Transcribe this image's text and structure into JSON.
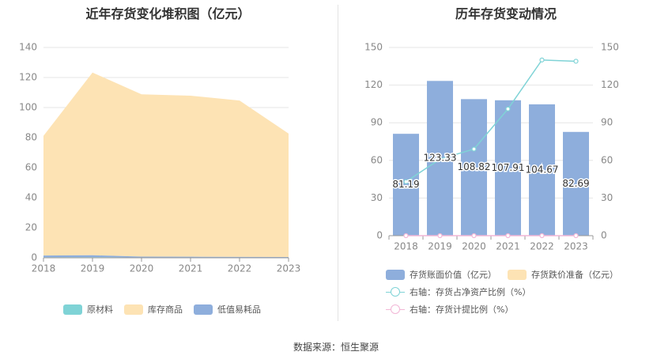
{
  "source": "数据来源：恒生聚源",
  "chart_data": [
    {
      "type": "area",
      "title": "近年存货变化堆积图（亿元）",
      "x": [
        "2018",
        "2019",
        "2020",
        "2021",
        "2022",
        "2023"
      ],
      "ylim": [
        0,
        140
      ],
      "yticks": [
        0,
        20,
        40,
        60,
        80,
        100,
        120,
        140
      ],
      "stacked": true,
      "grid": true,
      "legend_position": "bottom",
      "series": [
        {
          "name": "原材料",
          "color": "#7fd3d6",
          "values": [
            0.3,
            0.4,
            0.2,
            0.2,
            0.2,
            0.2
          ]
        },
        {
          "name": "低值易耗品",
          "color": "#8eaedc",
          "values": [
            1.2,
            1.3,
            0.6,
            0.5,
            0.4,
            0.3
          ]
        },
        {
          "name": "库存商品",
          "color": "#fde3b4",
          "values": [
            79.7,
            121.6,
            108.0,
            107.2,
            104.1,
            82.2
          ]
        }
      ]
    },
    {
      "type": "bar",
      "title": "历年存货变动情况",
      "categories": [
        "2018",
        "2019",
        "2020",
        "2021",
        "2022",
        "2023"
      ],
      "ylim": [
        0,
        150
      ],
      "yticks": [
        0,
        30,
        60,
        90,
        120,
        150
      ],
      "y2lim": [
        0,
        150
      ],
      "y2ticks": [
        0,
        30,
        60,
        90,
        120,
        150
      ],
      "grid": true,
      "legend_position": "bottom",
      "series": [
        {
          "name": "存货账面价值（亿元）",
          "type": "bar",
          "axis": "left",
          "color": "#8eaedc",
          "values": [
            81.19,
            123.33,
            108.82,
            107.91,
            104.67,
            82.69
          ],
          "labels": [
            "81.19",
            "123.33",
            "108.82",
            "107.91",
            "104.67",
            "82.69"
          ]
        },
        {
          "name": "存货跌价准备（亿元）",
          "type": "bar",
          "axis": "left",
          "color": "#fde3b4",
          "values": [
            0,
            0,
            0,
            0,
            0,
            0
          ]
        },
        {
          "name": "右轴：存货占净资产比例（%）",
          "type": "line",
          "axis": "right",
          "color": "#7fd3d6",
          "values": [
            43,
            61,
            69,
            101,
            140,
            139
          ]
        },
        {
          "name": "右轴：存货计提比例（%）",
          "type": "line",
          "axis": "right",
          "color": "#f2b6d6",
          "values": [
            0,
            0,
            0,
            0,
            0,
            0
          ]
        }
      ]
    }
  ]
}
